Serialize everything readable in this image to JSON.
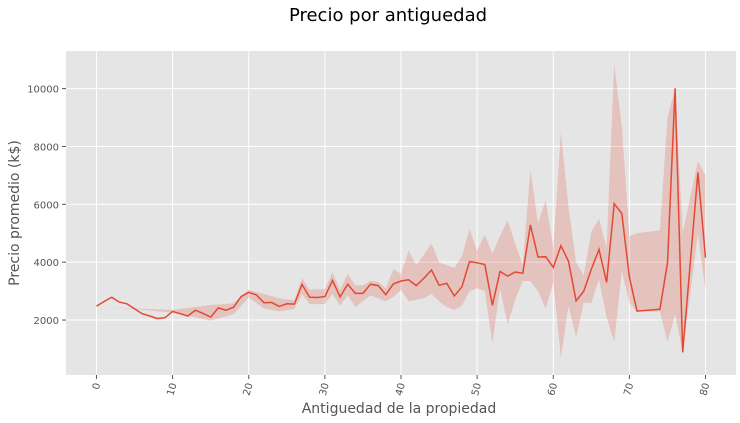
{
  "chart_data": {
    "type": "line",
    "title": "Precio por antiguedad",
    "xlabel": "Antiguedad de la propiedad",
    "ylabel": "Precio promedio (k$)",
    "xlim": [
      -4,
      84
    ],
    "ylim": [
      100,
      11300
    ],
    "xticks": [
      0,
      10,
      20,
      30,
      40,
      50,
      60,
      70,
      80
    ],
    "yticks": [
      2000,
      4000,
      6000,
      8000,
      10000
    ],
    "grid": true,
    "background": "#e5e5e5",
    "grid_color": "#ffffff",
    "line_color": "#e24a33",
    "band_color": "#e24a33",
    "series": [
      {
        "x": [
          0,
          1,
          2,
          3,
          4,
          5,
          6,
          7,
          8,
          9,
          10,
          11,
          12,
          13,
          14,
          15,
          16,
          17,
          18,
          19,
          20,
          21,
          22,
          23,
          24,
          25,
          26,
          27,
          28,
          29,
          30,
          31,
          32,
          33,
          34,
          35,
          36,
          37,
          38,
          39,
          40,
          41,
          42,
          43,
          44,
          45,
          46,
          47,
          48,
          49,
          50,
          51,
          52,
          53,
          54,
          55,
          56,
          57,
          58,
          59,
          60,
          61,
          62,
          63,
          64,
          65,
          66,
          67,
          68,
          69,
          70,
          71,
          74,
          75,
          76,
          77,
          79,
          80
        ],
        "y": [
          2480,
          2640,
          2790,
          2620,
          2560,
          2390,
          2220,
          2140,
          2050,
          2080,
          2300,
          2220,
          2140,
          2340,
          2230,
          2100,
          2420,
          2340,
          2440,
          2810,
          2960,
          2870,
          2600,
          2610,
          2470,
          2560,
          2550,
          3230,
          2790,
          2780,
          2810,
          3370,
          2800,
          3240,
          2920,
          2920,
          3240,
          3190,
          2880,
          3250,
          3350,
          3390,
          3190,
          3440,
          3730,
          3200,
          3270,
          2830,
          3150,
          4020,
          3980,
          3920,
          2510,
          3680,
          3520,
          3660,
          3620,
          5290,
          4180,
          4190,
          3820,
          4570,
          4030,
          2660,
          2990,
          3750,
          4440,
          3300,
          6020,
          5680,
          3480,
          2310,
          2370,
          3980,
          10010,
          880,
          7100,
          4160
        ]
      }
    ],
    "band": {
      "x": [
        0,
        5,
        10,
        15,
        18,
        20,
        22,
        24,
        26,
        27,
        28,
        30,
        31,
        32,
        33,
        34,
        35,
        36,
        37,
        38,
        39,
        40,
        41,
        42,
        43,
        44,
        45,
        46,
        47,
        48,
        49,
        50,
        51,
        52,
        53,
        54,
        55,
        56,
        57,
        58,
        59,
        60,
        61,
        62,
        63,
        64,
        65,
        66,
        67,
        68,
        69,
        70,
        71,
        74,
        75,
        76,
        77,
        79,
        80
      ],
      "upper": [
        2480,
        2400,
        2350,
        2520,
        2580,
        3050,
        2900,
        2750,
        2680,
        3450,
        3050,
        3080,
        3650,
        3050,
        3600,
        3200,
        3200,
        3350,
        3320,
        3100,
        3750,
        3600,
        4400,
        3900,
        4250,
        4650,
        4000,
        3900,
        3800,
        4200,
        5150,
        4400,
        4950,
        4300,
        4900,
        5450,
        4650,
        3900,
        7200,
        5350,
        6150,
        4500,
        8500,
        5900,
        4000,
        3550,
        5050,
        5500,
        4500,
        10850,
        8700,
        4900,
        5000,
        5100,
        9000,
        10000,
        5000,
        7500,
        7000
      ],
      "lower": [
        2480,
        2380,
        2250,
        1980,
        2200,
        2780,
        2400,
        2300,
        2380,
        2900,
        2550,
        2550,
        2900,
        2500,
        2850,
        2450,
        2650,
        2850,
        2750,
        2650,
        2800,
        3050,
        2650,
        2700,
        2750,
        2900,
        2650,
        2450,
        2350,
        2500,
        3000,
        3100,
        3000,
        1200,
        3100,
        1850,
        2700,
        3350,
        3350,
        3000,
        2400,
        3300,
        700,
        2500,
        1400,
        2600,
        2600,
        3400,
        2100,
        1250,
        3700,
        2600,
        2300,
        2300,
        1250,
        2200,
        880,
        5000,
        3000
      ]
    }
  }
}
